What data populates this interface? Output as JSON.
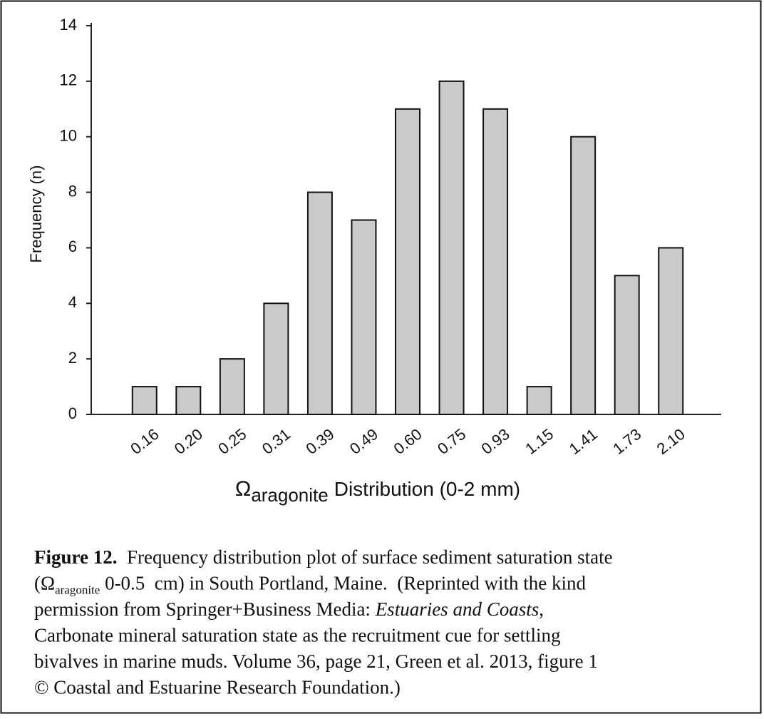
{
  "chart_data": {
    "type": "bar",
    "y_label": "Frequency (n)",
    "x_label": {
      "symbol": "Ω",
      "subscript": "aragonite",
      "text": "Distribution (0-2 mm)"
    },
    "categories": [
      "0.16",
      "0.20",
      "0.25",
      "0.31",
      "0.39",
      "0.49",
      "0.60",
      "0.75",
      "0.93",
      "1.15",
      "1.41",
      "1.73",
      "2.10"
    ],
    "values": [
      1,
      1,
      2,
      4,
      8,
      7,
      11,
      12,
      11,
      1,
      10,
      5,
      6
    ],
    "color": "#cacaca",
    "ylim": [
      0,
      14
    ],
    "yticks": [
      0,
      2,
      4,
      6,
      8,
      10,
      12,
      14
    ],
    "grid": false
  },
  "caption": {
    "lines": [
      [
        {
          "text": "Figure 12.",
          "style": "bold"
        },
        {
          "text": "  Frequency distribution plot of surface sediment saturation state"
        }
      ],
      [
        {
          "text": "(Ω"
        },
        {
          "text": "aragonite",
          "style": "sub"
        },
        {
          "text": " 0-0.5  cm) in South Portland, Maine.  (Reprinted with the kind"
        }
      ],
      [
        {
          "text": "permission from Springer+Business Media: "
        },
        {
          "text": "Estuaries and Coasts",
          "style": "italic"
        },
        {
          "text": ","
        }
      ],
      [
        {
          "text": "Carbonate mineral saturation state as the recruitment cue for settling"
        }
      ],
      [
        {
          "text": "bivalves in marine muds. Volume 36, page 21, Green et al. 2013, figure 1"
        }
      ],
      [
        {
          "text": "© Coastal and Estuarine Research Foundation.)"
        }
      ]
    ]
  }
}
